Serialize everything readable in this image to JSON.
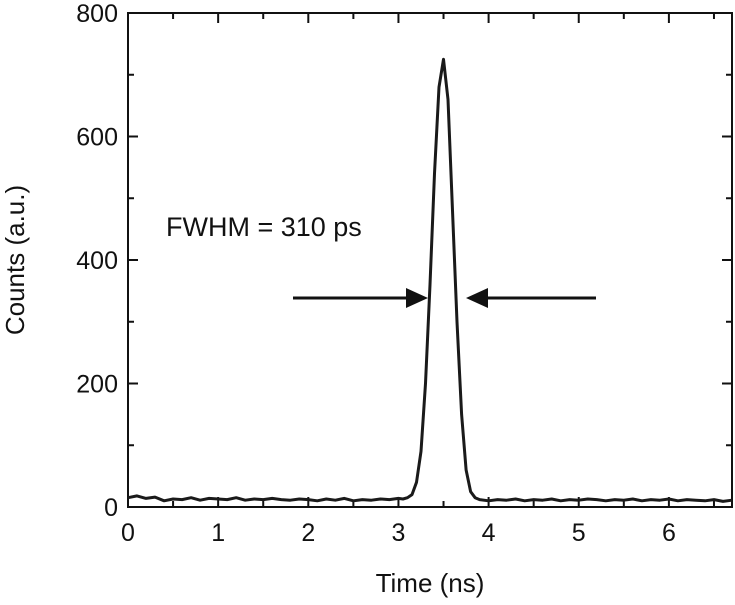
{
  "chart_data": {
    "type": "line",
    "xlabel": "Time (ns)",
    "ylabel": "Counts (a.u.)",
    "xlim": [
      0,
      6.7
    ],
    "ylim": [
      0,
      800
    ],
    "xticks": [
      "0",
      "1",
      "2",
      "3",
      "4",
      "5",
      "6"
    ],
    "yticks": [
      "0",
      "200",
      "400",
      "600",
      "800"
    ],
    "annotation": "FWHM = 310 ps",
    "grid": false,
    "series": [
      {
        "x": [
          0.0,
          0.1,
          0.2,
          0.3,
          0.4,
          0.5,
          0.6,
          0.7,
          0.8,
          0.9,
          1.0,
          1.1,
          1.2,
          1.3,
          1.4,
          1.5,
          1.6,
          1.7,
          1.8,
          1.9,
          2.0,
          2.1,
          2.2,
          2.3,
          2.4,
          2.5,
          2.6,
          2.7,
          2.8,
          2.9,
          3.0,
          3.05,
          3.1,
          3.15,
          3.2,
          3.25,
          3.3,
          3.35,
          3.4,
          3.45,
          3.5,
          3.55,
          3.6,
          3.65,
          3.7,
          3.75,
          3.8,
          3.85,
          3.9,
          4.0,
          4.1,
          4.2,
          4.3,
          4.4,
          4.5,
          4.6,
          4.7,
          4.8,
          4.9,
          5.0,
          5.1,
          5.2,
          5.3,
          5.4,
          5.5,
          5.6,
          5.7,
          5.8,
          5.9,
          6.0,
          6.1,
          6.2,
          6.3,
          6.4,
          6.5,
          6.6,
          6.7
        ],
        "y": [
          15,
          18,
          14,
          16,
          10,
          13,
          12,
          15,
          11,
          14,
          13,
          12,
          15,
          11,
          13,
          12,
          14,
          12,
          11,
          13,
          12,
          10,
          13,
          11,
          14,
          10,
          12,
          11,
          13,
          12,
          14,
          13,
          15,
          20,
          40,
          90,
          200,
          360,
          540,
          680,
          725,
          660,
          480,
          300,
          150,
          60,
          25,
          15,
          12,
          10,
          12,
          11,
          13,
          10,
          12,
          11,
          13,
          10,
          12,
          11,
          13,
          12,
          10,
          12,
          11,
          13,
          10,
          12,
          11,
          13,
          10,
          12,
          11,
          10,
          12,
          9,
          11
        ]
      }
    ]
  }
}
